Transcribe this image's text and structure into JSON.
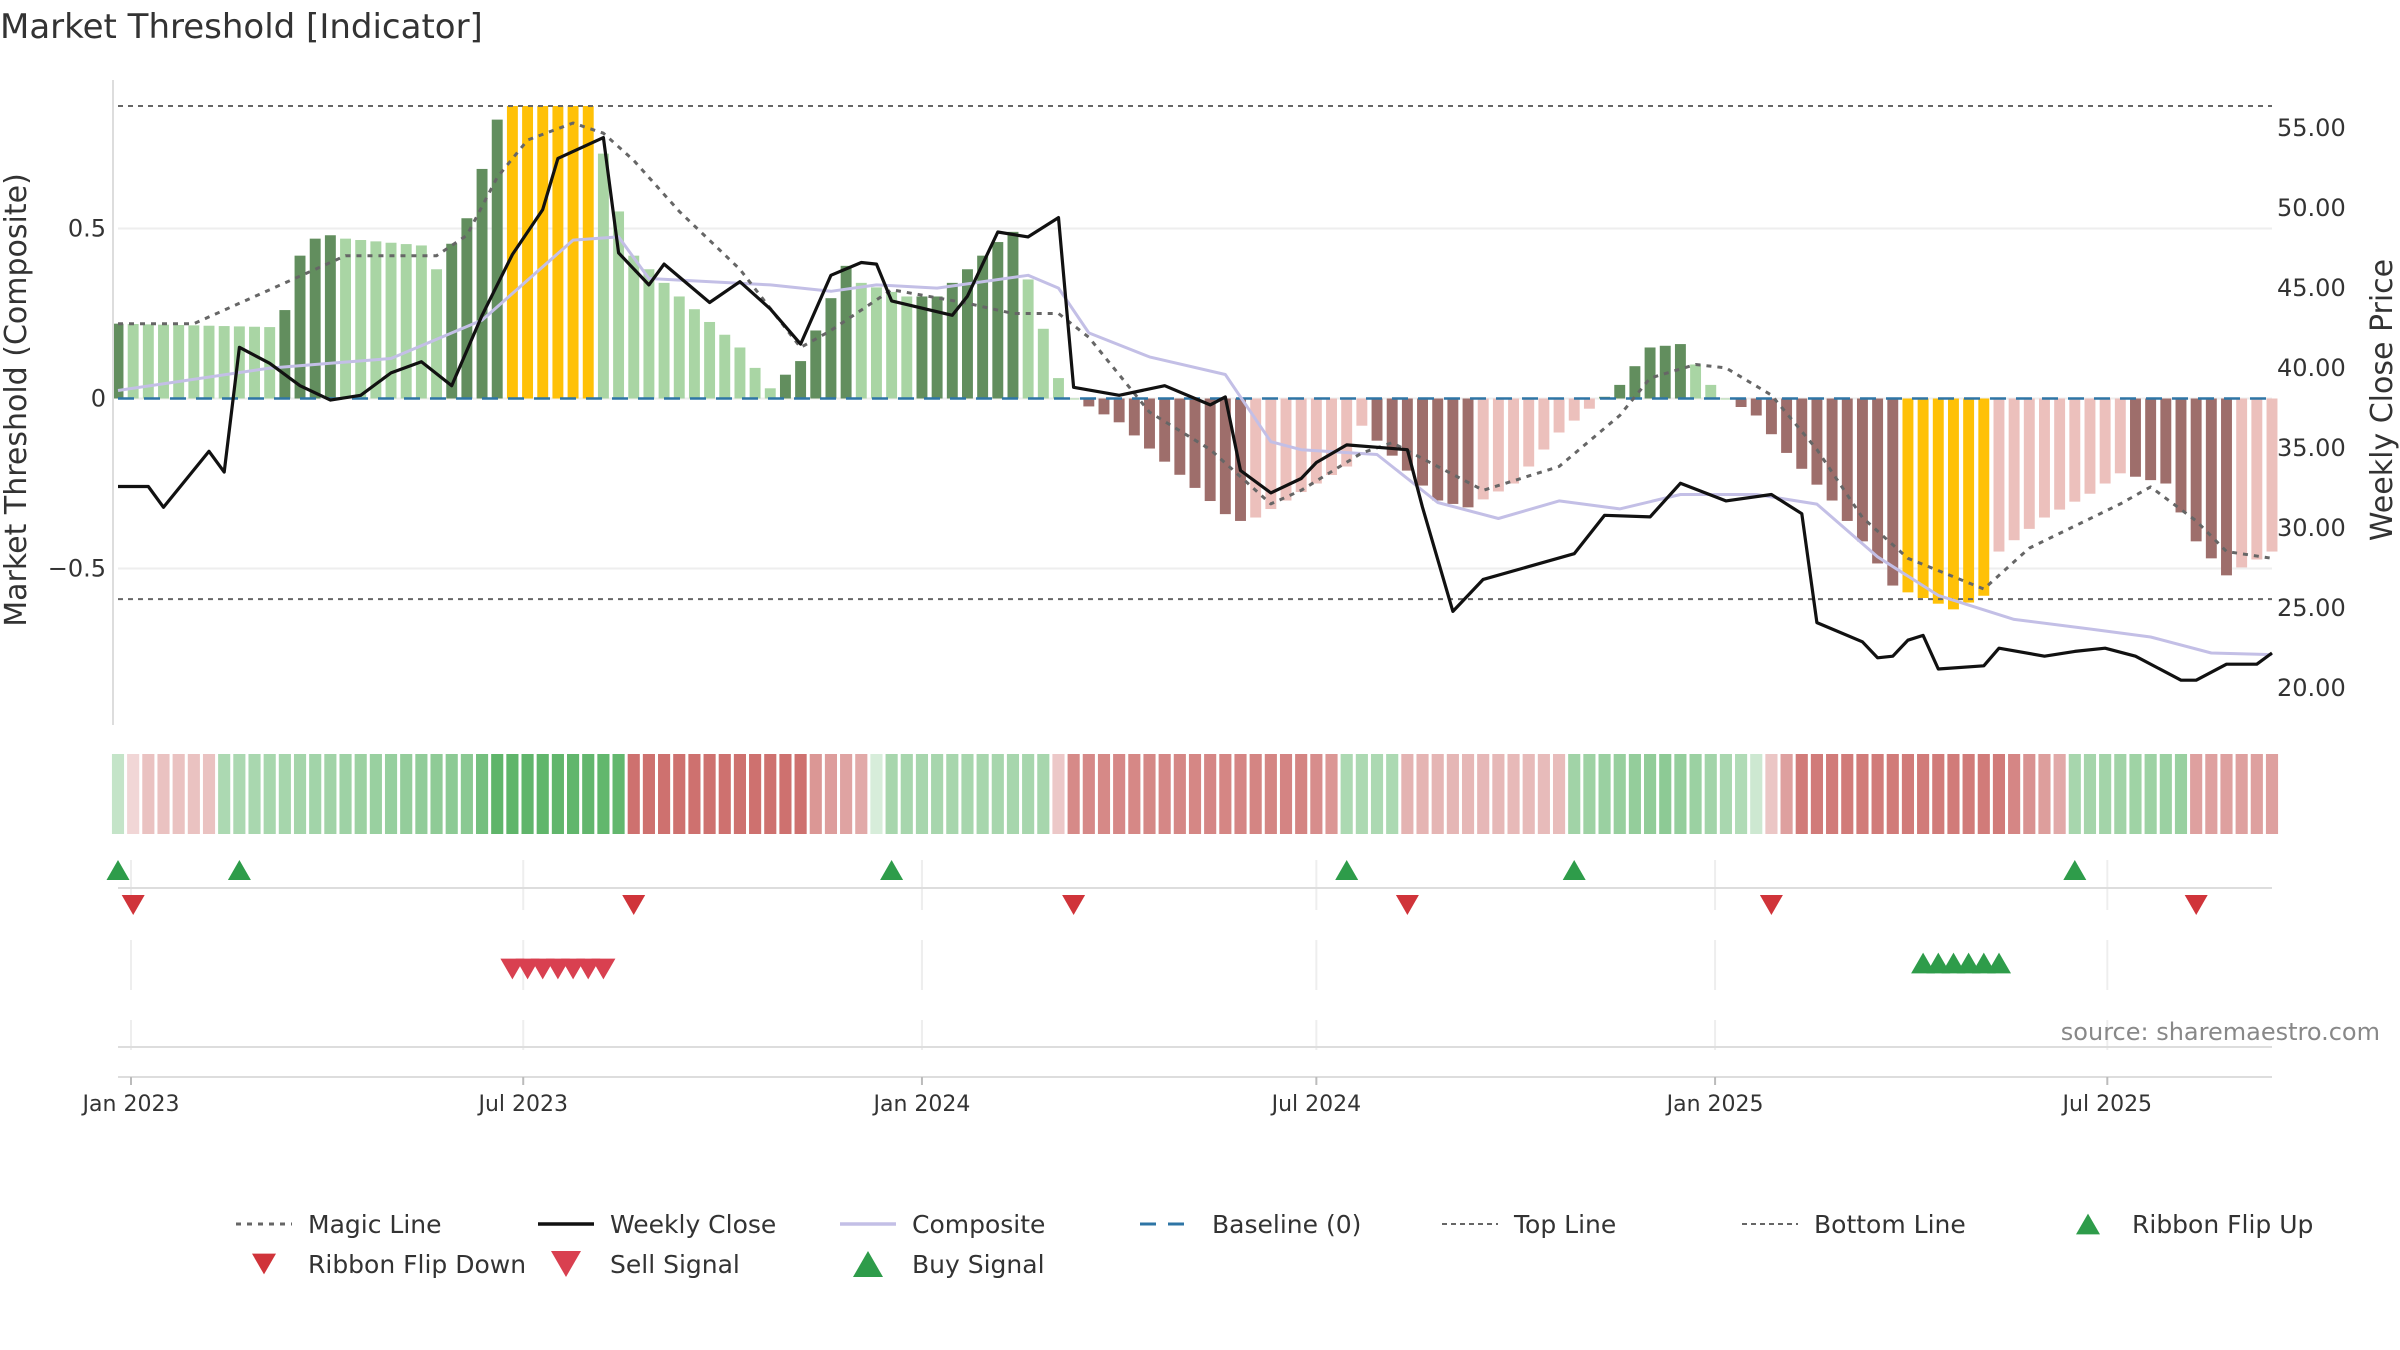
{
  "colors": {
    "bull_dark": "#628e5e",
    "bull_light": "#a9d5a4",
    "bear_dark": "#9e6e6b",
    "bear_light": "#ecc0bc",
    "extreme": "#ffc107",
    "close": "#111111",
    "composite": "#c3bfe6",
    "magic": "#666666",
    "baseline": "#2e75a5",
    "buy": "#2e9c4a",
    "sell": "#d94050",
    "ribbon_bull": "#5fb56a",
    "ribbon_bear": "#c96462"
  },
  "chart_data": {
    "type": "bar",
    "title": "Market Threshold [Indicator]",
    "ylabel_left": "Market Threshold (Composite)",
    "ylabel_right": "Weekly Close Price",
    "source": "source: sharemaestro.com",
    "x_range": [
      "2022-12-26",
      "2025-09-15"
    ],
    "ylim_left": [
      -0.96,
      0.96
    ],
    "ylim_right": [
      17.7,
      58.5
    ],
    "left_ticks": [
      {
        "v": 0.5,
        "label": "0.5"
      },
      {
        "v": 0,
        "label": "0"
      },
      {
        "v": -0.5,
        "label": "−0.5"
      }
    ],
    "right_ticks": [
      {
        "v": 55,
        "label": "55.00"
      },
      {
        "v": 50,
        "label": "50.00"
      },
      {
        "v": 45,
        "label": "45.00"
      },
      {
        "v": 40,
        "label": "40.00"
      },
      {
        "v": 35,
        "label": "35.00"
      },
      {
        "v": 30,
        "label": "30.00"
      },
      {
        "v": 25,
        "label": "25.00"
      },
      {
        "v": 20,
        "label": "20.00"
      }
    ],
    "x_ticks": [
      {
        "date": "2023-01-01",
        "label": "Jan 2023"
      },
      {
        "date": "2023-07-01",
        "label": "Jul 2023"
      },
      {
        "date": "2024-01-01",
        "label": "Jan 2024"
      },
      {
        "date": "2024-07-01",
        "label": "Jul 2024"
      },
      {
        "date": "2025-01-01",
        "label": "Jan 2025"
      },
      {
        "date": "2025-07-01",
        "label": "Jul 2025"
      }
    ],
    "top_line": 0.86,
    "bottom_line": -0.59,
    "baseline": 0,
    "bar_keys": [
      [
        "2022-12-26",
        0.22
      ],
      [
        "2023-03-06",
        0.21
      ],
      [
        "2023-03-13",
        0.26
      ],
      [
        "2023-03-20",
        0.42
      ],
      [
        "2023-03-27",
        0.47
      ],
      [
        "2023-04-03",
        0.48
      ],
      [
        "2023-04-10",
        0.47
      ],
      [
        "2023-05-15",
        0.45
      ],
      [
        "2023-05-22",
        0.38
      ],
      [
        "2023-06-05",
        0.53
      ],
      [
        "2023-06-19",
        0.82
      ],
      [
        "2023-06-26",
        0.86
      ],
      [
        "2023-07-31",
        0.86
      ],
      [
        "2023-08-07",
        0.72
      ],
      [
        "2023-08-14",
        0.55
      ],
      [
        "2023-08-21",
        0.42
      ],
      [
        "2023-09-11",
        0.3
      ],
      [
        "2023-10-09",
        0.15
      ],
      [
        "2023-10-23",
        0.03
      ],
      [
        "2023-11-06",
        0.11
      ],
      [
        "2023-11-13",
        0.2
      ],
      [
        "2023-11-27",
        0.39
      ],
      [
        "2023-12-04",
        0.34
      ],
      [
        "2023-12-25",
        0.3
      ],
      [
        "2024-01-08",
        0.3
      ],
      [
        "2024-02-05",
        0.46
      ],
      [
        "2024-02-12",
        0.49
      ],
      [
        "2024-02-19",
        0.35
      ],
      [
        "2024-03-04",
        0.06
      ],
      [
        "2024-03-11",
        0
      ],
      [
        "2024-04-01",
        -0.07
      ],
      [
        "2024-05-20",
        -0.34
      ],
      [
        "2024-05-27",
        -0.36
      ],
      [
        "2024-06-03",
        -0.35
      ],
      [
        "2024-06-17",
        -0.3
      ],
      [
        "2024-07-15",
        -0.2
      ],
      [
        "2024-07-22",
        -0.08
      ],
      [
        "2024-08-26",
        -0.3
      ],
      [
        "2024-09-09",
        -0.32
      ],
      [
        "2024-09-30",
        -0.25
      ],
      [
        "2024-10-21",
        -0.1
      ],
      [
        "2024-11-04",
        -0.03
      ],
      [
        "2024-11-18",
        0.04
      ],
      [
        "2024-12-02",
        0.15
      ],
      [
        "2024-12-16",
        0.16
      ],
      [
        "2024-12-30",
        0.04
      ],
      [
        "2025-01-06",
        0
      ],
      [
        "2025-01-20",
        -0.05
      ],
      [
        "2025-02-03",
        -0.16
      ],
      [
        "2025-02-24",
        -0.3
      ],
      [
        "2025-03-10",
        -0.42
      ],
      [
        "2025-03-24",
        -0.55
      ],
      [
        "2025-03-31",
        -0.57
      ],
      [
        "2025-04-21",
        -0.62
      ],
      [
        "2025-05-05",
        -0.58
      ],
      [
        "2025-05-12",
        -0.45
      ],
      [
        "2025-06-02",
        -0.35
      ],
      [
        "2025-06-23",
        -0.28
      ],
      [
        "2025-07-07",
        -0.22
      ],
      [
        "2025-07-28",
        -0.25
      ],
      [
        "2025-08-11",
        -0.42
      ],
      [
        "2025-08-25",
        -0.52
      ],
      [
        "2025-09-15",
        -0.45
      ]
    ],
    "extreme_windows": [
      [
        "2023-06-22",
        "2023-08-03"
      ],
      [
        "2025-03-27",
        "2025-05-08"
      ]
    ],
    "close_keys": [
      [
        "2022-12-26",
        32.6
      ],
      [
        "2023-01-09",
        32.6
      ],
      [
        "2023-01-16",
        31.3
      ],
      [
        "2023-02-06",
        34.8
      ],
      [
        "2023-02-13",
        33.5
      ],
      [
        "2023-02-20",
        41.3
      ],
      [
        "2023-03-06",
        40.3
      ],
      [
        "2023-03-20",
        38.9
      ],
      [
        "2023-04-03",
        38.0
      ],
      [
        "2023-04-17",
        38.3
      ],
      [
        "2023-05-01",
        39.7
      ],
      [
        "2023-05-15",
        40.4
      ],
      [
        "2023-05-29",
        38.9
      ],
      [
        "2023-06-12",
        43.3
      ],
      [
        "2023-06-26",
        47.1
      ],
      [
        "2023-07-10",
        49.9
      ],
      [
        "2023-07-17",
        53.1
      ],
      [
        "2023-08-07",
        54.4
      ],
      [
        "2023-08-14",
        47.2
      ],
      [
        "2023-08-28",
        45.2
      ],
      [
        "2023-09-04",
        46.5
      ],
      [
        "2023-09-25",
        44.1
      ],
      [
        "2023-10-09",
        45.4
      ],
      [
        "2023-10-23",
        43.7
      ],
      [
        "2023-11-06",
        41.5
      ],
      [
        "2023-11-20",
        45.8
      ],
      [
        "2023-12-04",
        46.6
      ],
      [
        "2023-12-11",
        46.5
      ],
      [
        "2023-12-18",
        44.2
      ],
      [
        "2024-01-15",
        43.3
      ],
      [
        "2024-01-22",
        44.5
      ],
      [
        "2024-02-05",
        48.5
      ],
      [
        "2024-02-19",
        48.2
      ],
      [
        "2024-03-04",
        49.4
      ],
      [
        "2024-03-11",
        38.8
      ],
      [
        "2024-04-01",
        38.3
      ],
      [
        "2024-04-22",
        38.9
      ],
      [
        "2024-05-13",
        37.7
      ],
      [
        "2024-05-20",
        38.2
      ],
      [
        "2024-05-27",
        33.6
      ],
      [
        "2024-06-10",
        32.2
      ],
      [
        "2024-06-24",
        33.1
      ],
      [
        "2024-07-01",
        34.1
      ],
      [
        "2024-07-15",
        35.2
      ],
      [
        "2024-08-12",
        34.9
      ],
      [
        "2024-08-19",
        31.3
      ],
      [
        "2024-09-02",
        24.8
      ],
      [
        "2024-09-16",
        26.8
      ],
      [
        "2024-10-07",
        27.6
      ],
      [
        "2024-10-28",
        28.4
      ],
      [
        "2024-11-11",
        30.8
      ],
      [
        "2024-12-02",
        30.7
      ],
      [
        "2024-12-16",
        32.8
      ],
      [
        "2025-01-06",
        31.7
      ],
      [
        "2025-01-27",
        32.1
      ],
      [
        "2025-02-10",
        30.9
      ],
      [
        "2025-02-17",
        24.1
      ],
      [
        "2025-03-10",
        22.9
      ],
      [
        "2025-03-17",
        21.9
      ],
      [
        "2025-03-24",
        22.0
      ],
      [
        "2025-03-31",
        23.0
      ],
      [
        "2025-04-07",
        23.3
      ],
      [
        "2025-04-14",
        21.2
      ],
      [
        "2025-05-05",
        21.4
      ],
      [
        "2025-05-12",
        22.5
      ],
      [
        "2025-06-02",
        22.0
      ],
      [
        "2025-06-16",
        22.3
      ],
      [
        "2025-06-30",
        22.5
      ],
      [
        "2025-07-14",
        22.0
      ],
      [
        "2025-08-04",
        20.5
      ],
      [
        "2025-08-11",
        20.5
      ],
      [
        "2025-08-25",
        21.5
      ],
      [
        "2025-09-08",
        21.5
      ],
      [
        "2025-09-15",
        22.2
      ]
    ],
    "composite_keys": [
      [
        "2022-12-26",
        38.6
      ],
      [
        "2023-03-06",
        40.0
      ],
      [
        "2023-04-03",
        40.3
      ],
      [
        "2023-05-01",
        40.6
      ],
      [
        "2023-06-12",
        43.0
      ],
      [
        "2023-07-24",
        48.0
      ],
      [
        "2023-08-14",
        48.2
      ],
      [
        "2023-08-28",
        45.6
      ],
      [
        "2023-10-23",
        45.2
      ],
      [
        "2023-11-20",
        44.8
      ],
      [
        "2023-12-11",
        45.2
      ],
      [
        "2024-01-08",
        45.0
      ],
      [
        "2024-02-19",
        45.8
      ],
      [
        "2024-03-04",
        45.0
      ],
      [
        "2024-03-18",
        42.2
      ],
      [
        "2024-04-15",
        40.7
      ],
      [
        "2024-05-20",
        39.6
      ],
      [
        "2024-06-10",
        35.4
      ],
      [
        "2024-06-24",
        34.9
      ],
      [
        "2024-07-29",
        34.6
      ],
      [
        "2024-08-26",
        31.6
      ],
      [
        "2024-09-23",
        30.6
      ],
      [
        "2024-10-21",
        31.7
      ],
      [
        "2024-11-18",
        31.2
      ],
      [
        "2024-12-16",
        32.1
      ],
      [
        "2025-01-20",
        32.1
      ],
      [
        "2025-02-17",
        31.5
      ],
      [
        "2025-03-17",
        28.2
      ],
      [
        "2025-04-14",
        25.8
      ],
      [
        "2025-05-19",
        24.3
      ],
      [
        "2025-06-23",
        23.7
      ],
      [
        "2025-07-21",
        23.2
      ],
      [
        "2025-08-18",
        22.2
      ],
      [
        "2025-09-15",
        22.1
      ]
    ],
    "magic_keys": [
      [
        "2022-12-26",
        0.22
      ],
      [
        "2023-01-30",
        0.22
      ],
      [
        "2023-02-20",
        0.28
      ],
      [
        "2023-03-27",
        0.38
      ],
      [
        "2023-04-10",
        0.42
      ],
      [
        "2023-05-22",
        0.42
      ],
      [
        "2023-06-05",
        0.48
      ],
      [
        "2023-06-19",
        0.65
      ],
      [
        "2023-07-03",
        0.76
      ],
      [
        "2023-07-24",
        0.81
      ],
      [
        "2023-08-07",
        0.78
      ],
      [
        "2023-08-21",
        0.7
      ],
      [
        "2023-09-11",
        0.55
      ],
      [
        "2023-10-09",
        0.38
      ],
      [
        "2023-11-06",
        0.15
      ],
      [
        "2023-11-20",
        0.2
      ],
      [
        "2023-12-18",
        0.32
      ],
      [
        "2024-01-22",
        0.28
      ],
      [
        "2024-02-12",
        0.25
      ],
      [
        "2024-03-04",
        0.25
      ],
      [
        "2024-03-18",
        0.18
      ],
      [
        "2024-04-15",
        -0.04
      ],
      [
        "2024-05-13",
        -0.15
      ],
      [
        "2024-06-10",
        -0.31
      ],
      [
        "2024-06-24",
        -0.27
      ],
      [
        "2024-07-22",
        -0.16
      ],
      [
        "2024-08-05",
        -0.13
      ],
      [
        "2024-08-26",
        -0.2
      ],
      [
        "2024-09-16",
        -0.27
      ],
      [
        "2024-10-21",
        -0.2
      ],
      [
        "2024-11-18",
        -0.05
      ],
      [
        "2024-12-02",
        0.06
      ],
      [
        "2024-12-23",
        0.1
      ],
      [
        "2025-01-06",
        0.09
      ],
      [
        "2025-01-27",
        0.01
      ],
      [
        "2025-02-17",
        -0.15
      ],
      [
        "2025-03-10",
        -0.35
      ],
      [
        "2025-03-31",
        -0.47
      ],
      [
        "2025-05-05",
        -0.56
      ],
      [
        "2025-05-26",
        -0.44
      ],
      [
        "2025-07-07",
        -0.31
      ],
      [
        "2025-07-21",
        -0.26
      ],
      [
        "2025-08-11",
        -0.36
      ],
      [
        "2025-08-25",
        -0.45
      ],
      [
        "2025-09-15",
        -0.47
      ]
    ],
    "ribbon_keys": [
      [
        "2022-12-26",
        0.1
      ],
      [
        "2023-01-09",
        -0.12
      ],
      [
        "2023-02-06",
        -0.12
      ],
      [
        "2023-02-13",
        0.22
      ],
      [
        "2023-04-03",
        0.28
      ],
      [
        "2023-06-05",
        0.4
      ],
      [
        "2023-06-19",
        0.62
      ],
      [
        "2023-08-14",
        0.6
      ],
      [
        "2023-08-21",
        -0.55
      ],
      [
        "2023-11-06",
        -0.55
      ],
      [
        "2023-11-13",
        -0.35
      ],
      [
        "2023-12-04",
        -0.25
      ],
      [
        "2023-12-18",
        0.25
      ],
      [
        "2024-02-26",
        0.25
      ],
      [
        "2024-03-11",
        -0.42
      ],
      [
        "2024-06-24",
        -0.45
      ],
      [
        "2024-07-08",
        -0.35
      ],
      [
        "2024-07-15",
        0.22
      ],
      [
        "2024-08-05",
        0.22
      ],
      [
        "2024-08-12",
        -0.2
      ],
      [
        "2024-10-21",
        -0.15
      ],
      [
        "2024-10-28",
        0.28
      ],
      [
        "2024-12-09",
        0.38
      ],
      [
        "2025-01-13",
        0.2
      ],
      [
        "2025-01-27",
        -0.1
      ],
      [
        "2025-02-10",
        -0.5
      ],
      [
        "2025-05-12",
        -0.5
      ],
      [
        "2025-06-09",
        -0.25
      ],
      [
        "2025-06-16",
        0.25
      ],
      [
        "2025-08-04",
        0.32
      ],
      [
        "2025-08-11",
        -0.3
      ],
      [
        "2025-09-15",
        -0.3
      ]
    ],
    "ribbon_flip_up": [
      "2022-12-26",
      "2023-02-20",
      "2023-12-18",
      "2024-07-15",
      "2024-10-28",
      "2025-06-16"
    ],
    "ribbon_flip_down": [
      "2023-01-02",
      "2023-08-21",
      "2024-03-11",
      "2024-08-12",
      "2025-01-27",
      "2025-08-11"
    ],
    "sell_signals": [
      "2023-06-26",
      "2023-07-03",
      "2023-07-10",
      "2023-07-17",
      "2023-07-24",
      "2023-07-31",
      "2023-08-07"
    ],
    "buy_signals": [
      "2025-04-07",
      "2025-04-14",
      "2025-04-21",
      "2025-04-28",
      "2025-05-05",
      "2025-05-12"
    ],
    "legend": [
      {
        "key": "magic",
        "label": "Magic Line"
      },
      {
        "key": "close",
        "label": "Weekly Close"
      },
      {
        "key": "composite",
        "label": "Composite"
      },
      {
        "key": "baseline",
        "label": "Baseline (0)"
      },
      {
        "key": "top",
        "label": "Top Line"
      },
      {
        "key": "bottom",
        "label": "Bottom Line"
      },
      {
        "key": "flip_up",
        "label": "Ribbon Flip Up"
      },
      {
        "key": "flip_down",
        "label": "Ribbon Flip Down"
      },
      {
        "key": "sell",
        "label": "Sell Signal"
      },
      {
        "key": "buy",
        "label": "Buy Signal"
      }
    ]
  }
}
